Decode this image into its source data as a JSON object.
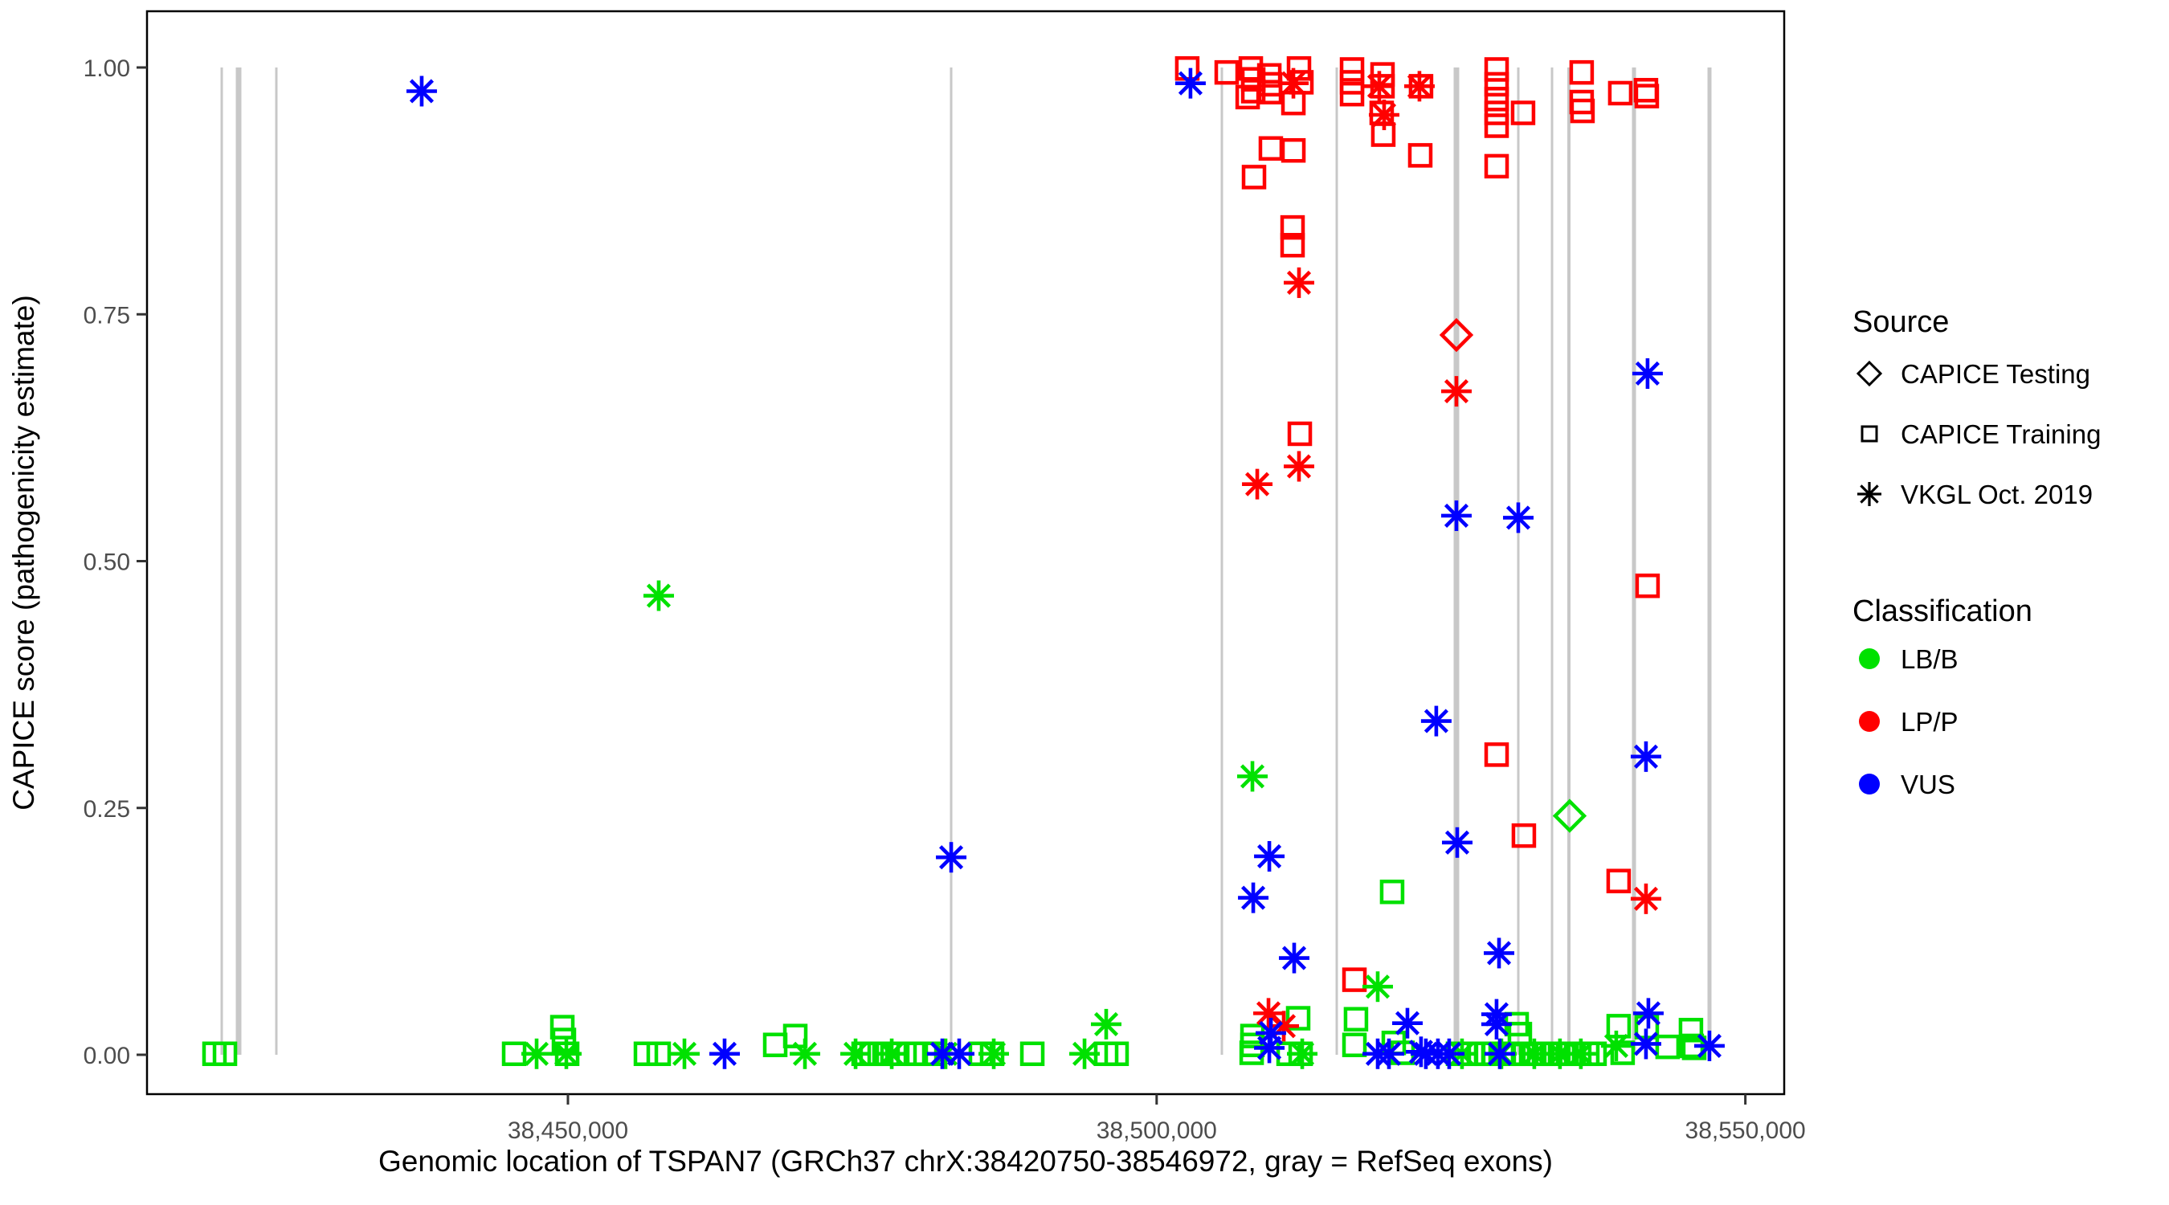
{
  "colors": {
    "lbb": "#00E100",
    "lpp": "#FF0000",
    "vus": "#0000FF",
    "exon_gray": "#C8C8C8",
    "axis_black": "#000000",
    "tick_text_gray": "#4d4d4d"
  },
  "legend": {
    "source": {
      "title": "Source",
      "items": [
        {
          "marker": "diamond",
          "label": "CAPICE Testing"
        },
        {
          "marker": "square",
          "label": "CAPICE Training"
        },
        {
          "marker": "star",
          "label": "VKGL Oct. 2019"
        }
      ]
    },
    "classification": {
      "title": "Classification",
      "items": [
        {
          "color": "#00E100",
          "label": "LB/B"
        },
        {
          "color": "#FF0000",
          "label": "LP/P"
        },
        {
          "color": "#0000FF",
          "label": "VUS"
        }
      ]
    }
  },
  "chart_data": {
    "type": "scatter",
    "xlabel": "Genomic location of TSPAN7 (GRCh37 chrX:38420750-38546972, gray = RefSeq exons)",
    "ylabel": "CAPICE score (pathogenicity estimate)",
    "xlim": [
      38414250,
      38553300
    ],
    "ylim": [
      0,
      1
    ],
    "grid": false,
    "legend_position": "right",
    "x_ticks": [
      {
        "value": 38450000,
        "label": "38,450,000"
      },
      {
        "value": 38500000,
        "label": "38,500,000"
      },
      {
        "value": 38550000,
        "label": "38,550,000"
      }
    ],
    "y_ticks": [
      {
        "value": 0.0,
        "label": "0.00"
      },
      {
        "value": 0.25,
        "label": "0.25"
      },
      {
        "value": 0.5,
        "label": "0.50"
      },
      {
        "value": 0.75,
        "label": "0.75"
      },
      {
        "value": 1.0,
        "label": "1.00"
      }
    ],
    "refseq_exons": [
      {
        "pos": 38420596,
        "w": 3
      },
      {
        "pos": 38422028,
        "w": 7
      },
      {
        "pos": 38425235,
        "w": 3
      },
      {
        "pos": 38482548,
        "w": 3
      },
      {
        "pos": 38505540,
        "w": 3
      },
      {
        "pos": 38515297,
        "w": 3
      },
      {
        "pos": 38525463,
        "w": 7
      },
      {
        "pos": 38530717,
        "w": 3
      },
      {
        "pos": 38533582,
        "w": 3
      },
      {
        "pos": 38535015,
        "w": 4
      },
      {
        "pos": 38540542,
        "w": 5
      },
      {
        "pos": 38546955,
        "w": 5
      }
    ],
    "series": [
      {
        "name": "CAPICE Training / LB/B",
        "source": "CAPICE Training",
        "classification": "LB/B",
        "marker": "square",
        "color": "#00E100",
        "points": [
          [
            38419980,
            0.001
          ],
          [
            38420870,
            0.001
          ],
          [
            38445430,
            0.001
          ],
          [
            38449525,
            0.028
          ],
          [
            38449660,
            0.015
          ],
          [
            38449935,
            0.001
          ],
          [
            38456620,
            0.001
          ],
          [
            38457710,
            0.001
          ],
          [
            38467605,
            0.01
          ],
          [
            38469310,
            0.019
          ],
          [
            38475110,
            0.001
          ],
          [
            38475790,
            0.001
          ],
          [
            38476475,
            0.001
          ],
          [
            38477155,
            0.001
          ],
          [
            38477975,
            0.001
          ],
          [
            38479545,
            0.001
          ],
          [
            38480365,
            0.001
          ],
          [
            38481115,
            0.001
          ],
          [
            38485070,
            0.001
          ],
          [
            38486025,
            0.001
          ],
          [
            38489440,
            0.001
          ],
          [
            38495715,
            0.001
          ],
          [
            38496600,
            0.001
          ],
          [
            38508070,
            0.002
          ],
          [
            38508135,
            0.01
          ],
          [
            38508135,
            0.019
          ],
          [
            38511205,
            0.001
          ],
          [
            38512020,
            0.037
          ],
          [
            38512230,
            0.001
          ],
          [
            38516800,
            0.01
          ],
          [
            38516930,
            0.036
          ],
          [
            38520000,
            0.165
          ],
          [
            38520140,
            0.012
          ],
          [
            38520890,
            0.002
          ],
          [
            38525595,
            0.001
          ],
          [
            38526210,
            0.001
          ],
          [
            38526825,
            0.001
          ],
          [
            38527440,
            0.001
          ],
          [
            38528050,
            0.001
          ],
          [
            38528665,
            0.001
          ],
          [
            38529485,
            0.001
          ],
          [
            38530300,
            0.001
          ],
          [
            38530580,
            0.031
          ],
          [
            38530850,
            0.021
          ],
          [
            38531120,
            0.001
          ],
          [
            38531805,
            0.001
          ],
          [
            38532485,
            0.001
          ],
          [
            38533165,
            0.001
          ],
          [
            38533850,
            0.001
          ],
          [
            38534530,
            0.001
          ],
          [
            38535215,
            0.001
          ],
          [
            38535895,
            0.001
          ],
          [
            38536580,
            0.001
          ],
          [
            38537195,
            0.001
          ],
          [
            38539240,
            0.029
          ],
          [
            38539580,
            0.002
          ],
          [
            38541630,
            0.028
          ],
          [
            38543400,
            0.008
          ],
          [
            38545380,
            0.025
          ],
          [
            38545450,
            0.009
          ],
          [
            38545655,
            0.007
          ]
        ]
      },
      {
        "name": "CAPICE Training / LP/P",
        "source": "CAPICE Training",
        "classification": "LP/P",
        "marker": "square",
        "color": "#FF0000",
        "points": [
          [
            38502600,
            0.999
          ],
          [
            38505950,
            0.995
          ],
          [
            38507730,
            0.97
          ],
          [
            38508000,
            0.999
          ],
          [
            38508205,
            0.988
          ],
          [
            38508205,
            0.976
          ],
          [
            38508270,
            0.889
          ],
          [
            38509570,
            0.992
          ],
          [
            38509635,
            0.983
          ],
          [
            38509635,
            0.975
          ],
          [
            38509700,
            0.918
          ],
          [
            38511545,
            0.838
          ],
          [
            38511545,
            0.82
          ],
          [
            38511615,
            0.964
          ],
          [
            38511615,
            0.916
          ],
          [
            38512090,
            0.999
          ],
          [
            38512295,
            0.985
          ],
          [
            38512160,
            0.629
          ],
          [
            38516595,
            0.998
          ],
          [
            38516595,
            0.985
          ],
          [
            38516595,
            0.973
          ],
          [
            38516800,
            0.076
          ],
          [
            38519185,
            0.993
          ],
          [
            38519185,
            0.981
          ],
          [
            38519115,
            0.954
          ],
          [
            38519250,
            0.932
          ],
          [
            38522455,
            0.981
          ],
          [
            38522390,
            0.911
          ],
          [
            38528875,
            0.998
          ],
          [
            38528875,
            0.983
          ],
          [
            38528875,
            0.968
          ],
          [
            38528875,
            0.954
          ],
          [
            38528875,
            0.941
          ],
          [
            38528875,
            0.9
          ],
          [
            38528875,
            0.304
          ],
          [
            38531120,
            0.954
          ],
          [
            38531190,
            0.222
          ],
          [
            38536100,
            0.995
          ],
          [
            38536100,
            0.965
          ],
          [
            38536170,
            0.956
          ],
          [
            38539240,
            0.176
          ],
          [
            38539375,
            0.974
          ],
          [
            38541560,
            0.977
          ],
          [
            38541630,
            0.971
          ],
          [
            38541695,
            0.475
          ]
        ]
      },
      {
        "name": "VKGL Oct. 2019 / LB/B",
        "source": "VKGL Oct. 2019",
        "classification": "LB/B",
        "marker": "star",
        "color": "#00E100",
        "points": [
          [
            38447340,
            0.001
          ],
          [
            38449865,
            0.001
          ],
          [
            38457710,
            0.465
          ],
          [
            38459895,
            0.001
          ],
          [
            38470130,
            0.001
          ],
          [
            38474430,
            0.001
          ],
          [
            38477500,
            0.001
          ],
          [
            38482070,
            0.001
          ],
          [
            38486165,
            0.001
          ],
          [
            38493875,
            0.001
          ],
          [
            38495715,
            0.031
          ],
          [
            38508135,
            0.282
          ],
          [
            38512365,
            0.001
          ],
          [
            38518775,
            0.069
          ],
          [
            38525935,
            0.001
          ],
          [
            38529280,
            0.001
          ],
          [
            38532075,
            0.001
          ],
          [
            38534255,
            0.001
          ],
          [
            38536030,
            0.001
          ],
          [
            38539035,
            0.009
          ]
        ]
      },
      {
        "name": "VKGL Oct. 2019 / LP/P",
        "source": "VKGL Oct. 2019",
        "classification": "LP/P",
        "marker": "star",
        "color": "#FF0000",
        "points": [
          [
            38508545,
            0.578
          ],
          [
            38509500,
            0.042
          ],
          [
            38510795,
            0.029
          ],
          [
            38511615,
            0.984
          ],
          [
            38512090,
            0.782
          ],
          [
            38512090,
            0.596
          ],
          [
            38518910,
            0.981
          ],
          [
            38519320,
            0.952
          ],
          [
            38522320,
            0.981
          ],
          [
            38525460,
            0.672
          ],
          [
            38541560,
            0.158
          ]
        ]
      },
      {
        "name": "VKGL Oct. 2019 / VUS",
        "source": "VKGL Oct. 2019",
        "classification": "VUS",
        "marker": "star",
        "color": "#0000FF",
        "points": [
          [
            38437580,
            0.976
          ],
          [
            38463305,
            0.001
          ],
          [
            38481795,
            0.001
          ],
          [
            38482550,
            0.2
          ],
          [
            38483230,
            0.001
          ],
          [
            38502875,
            0.984
          ],
          [
            38508205,
            0.159
          ],
          [
            38509570,
            0.201
          ],
          [
            38509570,
            0.007
          ],
          [
            38509705,
            0.022
          ],
          [
            38511680,
            0.098
          ],
          [
            38518775,
            0.001
          ],
          [
            38519730,
            0.001
          ],
          [
            38521300,
            0.032
          ],
          [
            38522455,
            0.003
          ],
          [
            38522865,
            0.001
          ],
          [
            38523750,
            0.338
          ],
          [
            38523890,
            0.001
          ],
          [
            38524845,
            0.001
          ],
          [
            38525460,
            0.546
          ],
          [
            38525530,
            0.215
          ],
          [
            38528870,
            0.041
          ],
          [
            38528870,
            0.031
          ],
          [
            38529080,
            0.103
          ],
          [
            38529145,
            0.001
          ],
          [
            38530715,
            0.544
          ],
          [
            38541560,
            0.302
          ],
          [
            38541560,
            0.011
          ],
          [
            38541695,
            0.69
          ],
          [
            38541765,
            0.042
          ],
          [
            38546950,
            0.009
          ]
        ]
      },
      {
        "name": "CAPICE Testing / LP/P",
        "source": "CAPICE Testing",
        "classification": "LP/P",
        "marker": "diamond",
        "color": "#FF0000",
        "points": [
          [
            38525460,
            0.729
          ]
        ]
      },
      {
        "name": "CAPICE Testing / LB/B",
        "source": "CAPICE Testing",
        "classification": "LB/B",
        "marker": "diamond",
        "color": "#00E100",
        "points": [
          [
            38535080,
            0.242
          ]
        ]
      }
    ]
  }
}
